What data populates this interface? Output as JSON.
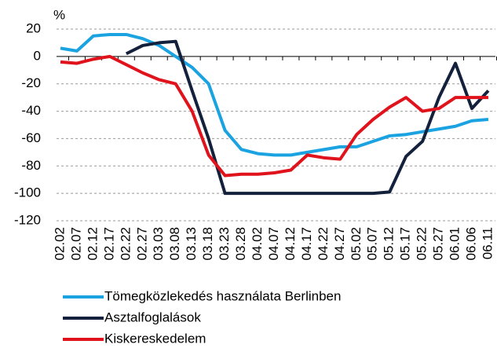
{
  "chart_data": {
    "type": "line",
    "y_label": "%",
    "categories": [
      "02.02",
      "02.07",
      "02.12",
      "02.17",
      "02.22",
      "02.27",
      "03.03",
      "03.08",
      "03.13",
      "03.18",
      "03.23",
      "03.28",
      "04.02",
      "04.07",
      "04.12",
      "04.17",
      "04.22",
      "04.27",
      "05.02",
      "05.07",
      "05.12",
      "05.17",
      "05.22",
      "05.27",
      "06.01",
      "06.06",
      "06.11"
    ],
    "series": [
      {
        "name": "Tömegközlekedés használata Berlinben",
        "color": "#1aa3e0",
        "values": [
          6,
          4,
          15,
          16,
          16,
          13,
          8,
          0,
          -8,
          -20,
          -54,
          -68,
          -71,
          -72,
          -72,
          -70,
          -68,
          -66,
          -66,
          -62,
          -58,
          -57,
          -55,
          -53,
          -51,
          -47,
          -46
        ]
      },
      {
        "name": "Asztalfoglalások",
        "color": "#14213d",
        "values": [
          null,
          null,
          null,
          null,
          2,
          8,
          10,
          11,
          -25,
          -60,
          -100,
          -100,
          -100,
          -100,
          -100,
          -100,
          -100,
          -100,
          -100,
          -100,
          -99,
          -73,
          -62,
          -30,
          -5,
          -38,
          -25
        ]
      },
      {
        "name": "Kiskereskedelem",
        "color": "#e0121b",
        "values": [
          -4,
          -5,
          -2,
          0,
          -6,
          -12,
          -17,
          -20,
          -40,
          -72,
          -87,
          -86,
          -86,
          -85,
          -83,
          -72,
          -74,
          -75,
          -57,
          -46,
          -37,
          -30,
          -40,
          -38,
          -30,
          -30,
          -30
        ]
      }
    ],
    "ylim": [
      -120,
      20
    ],
    "yticks": [
      20,
      0,
      -20,
      -40,
      -60,
      -80,
      -100,
      -120
    ],
    "grid": true
  }
}
